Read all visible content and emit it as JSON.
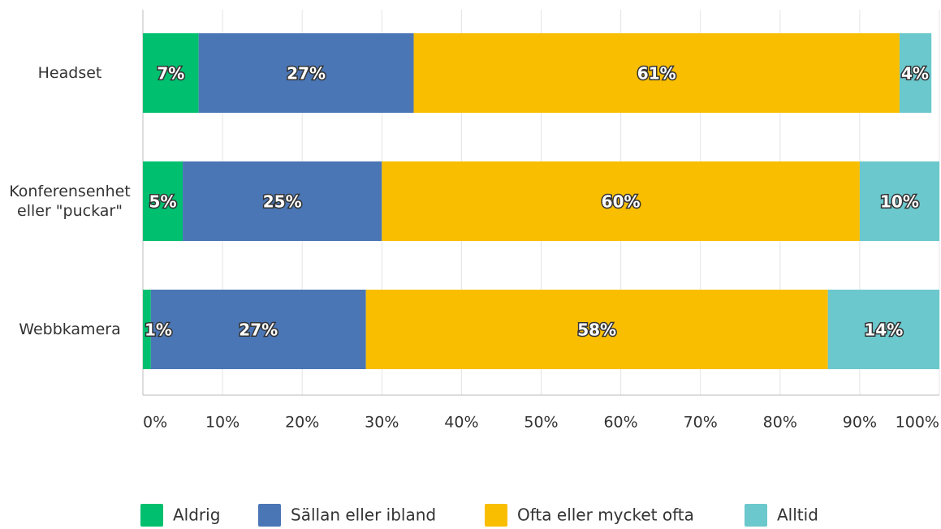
{
  "chart_data": {
    "type": "stacked_barh",
    "categories": [
      "Headset",
      "Konferensenhet eller \"puckar\"",
      "Webbkamera"
    ],
    "series": [
      {
        "name": "Aldrig",
        "color": "#00bf6f",
        "values": [
          7,
          5,
          1
        ],
        "value_labels": [
          "7%",
          "5%",
          "1%"
        ]
      },
      {
        "name": "Sällan eller ibland",
        "color": "#4a76b5",
        "values": [
          27,
          25,
          27
        ],
        "value_labels": [
          "27%",
          "25%",
          "27%"
        ]
      },
      {
        "name": "Ofta eller mycket ofta",
        "color": "#f9be00",
        "values": [
          61,
          60,
          58
        ],
        "value_labels": [
          "61%",
          "60%",
          "58%"
        ]
      },
      {
        "name": "Alltid",
        "color": "#6bc8cd",
        "values": [
          4,
          10,
          14
        ],
        "value_labels": [
          "4%",
          "10%",
          "14%"
        ]
      }
    ],
    "xlim": [
      0,
      100
    ],
    "xticks": [
      {
        "value": 0,
        "label": "0%"
      },
      {
        "value": 10,
        "label": "10%"
      },
      {
        "value": 20,
        "label": "20%"
      },
      {
        "value": 30,
        "label": "30%"
      },
      {
        "value": 40,
        "label": "40%"
      },
      {
        "value": 50,
        "label": "50%"
      },
      {
        "value": 60,
        "label": "60%"
      },
      {
        "value": 70,
        "label": "70%"
      },
      {
        "value": 80,
        "label": "80%"
      },
      {
        "value": 90,
        "label": "90%"
      },
      {
        "value": 100,
        "label": "100%"
      }
    ],
    "grid": true,
    "legend": "bottom"
  }
}
